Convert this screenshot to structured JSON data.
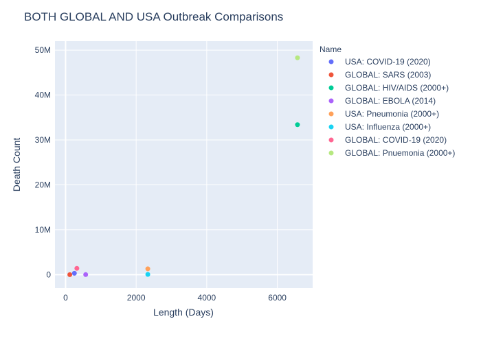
{
  "chart_data": {
    "type": "scatter",
    "title": "BOTH GLOBAL AND USA Outbreak Comparisons",
    "xlabel": "Length (Days)",
    "ylabel": "Death Count",
    "xlim": [
      -300,
      7000
    ],
    "ylim": [
      -3000000,
      52000000
    ],
    "x_ticks": [
      0,
      2000,
      4000,
      6000
    ],
    "x_tick_labels": [
      "0",
      "2000",
      "4000",
      "6000"
    ],
    "y_ticks": [
      0,
      10000000,
      20000000,
      30000000,
      40000000,
      50000000
    ],
    "y_tick_labels": [
      "0",
      "10M",
      "20M",
      "30M",
      "40M",
      "50M"
    ],
    "grid": true,
    "legend_title": "Name",
    "legend_position": "right",
    "series": [
      {
        "name": "USA: COVID-19 (2020)",
        "color": "#636efa",
        "x": [
          250
        ],
        "y": [
          300000
        ]
      },
      {
        "name": "GLOBAL: SARS (2003)",
        "color": "#EF553B",
        "x": [
          120
        ],
        "y": [
          800
        ]
      },
      {
        "name": "GLOBAL: HIV/AIDS (2000+)",
        "color": "#00cc96",
        "x": [
          6570
        ],
        "y": [
          33400000
        ]
      },
      {
        "name": "GLOBAL: EBOLA (2014)",
        "color": "#ab63fa",
        "x": [
          570
        ],
        "y": [
          11000
        ]
      },
      {
        "name": "USA: Pneumonia (2000+)",
        "color": "#FFA15A",
        "x": [
          2330
        ],
        "y": [
          1300000
        ]
      },
      {
        "name": "USA: Influenza (2000+)",
        "color": "#19d3f3",
        "x": [
          2330
        ],
        "y": [
          50000
        ]
      },
      {
        "name": "GLOBAL: COVID-19 (2020)",
        "color": "#FF6692",
        "x": [
          320
        ],
        "y": [
          1400000
        ]
      },
      {
        "name": "GLOBAL: Pnuemonia (2000+)",
        "color": "#B6E880",
        "x": [
          6570
        ],
        "y": [
          48300000
        ]
      }
    ]
  }
}
